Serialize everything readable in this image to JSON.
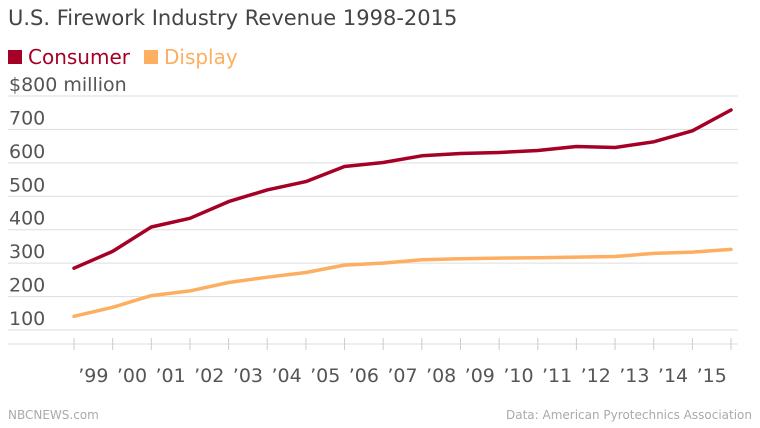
{
  "header": {
    "title": "U.S. Firework Industry Revenue 1998-2015"
  },
  "colors": {
    "consumer": "#a50026",
    "display": "#fdae61",
    "grid": "#dddddd",
    "axis_text": "#555555"
  },
  "footer": {
    "source_left": "NBCNEWS.com",
    "source_right": "Data: American Pyrotechnics Association"
  },
  "chart_data": {
    "type": "line",
    "title": "U.S. Firework Industry Revenue 1998-2015",
    "xlabel": "",
    "ylabel": "",
    "x": [
      "1998",
      "1999",
      "2000",
      "2001",
      "2002",
      "2003",
      "2004",
      "2005",
      "2006",
      "2007",
      "2008",
      "2009",
      "2010",
      "2011",
      "2012",
      "2013",
      "2014",
      "2015"
    ],
    "x_tick_labels": [
      "’99",
      "’00",
      "’01",
      "’02",
      "’03",
      "’04",
      "’05",
      "’06",
      "’07",
      "’08",
      "’09",
      "’10",
      "’11",
      "’12",
      "’13",
      "’14",
      "’15"
    ],
    "y_tick_labels": [
      "$800 million",
      "700",
      "600",
      "500",
      "400",
      "300",
      "200",
      "100"
    ],
    "y_ticks": [
      800,
      700,
      600,
      500,
      400,
      300,
      200,
      100
    ],
    "ylim": [
      100,
      800
    ],
    "grid": true,
    "legend_position": "top-left",
    "series": [
      {
        "name": "Consumer",
        "color": "#a50026",
        "values": [
          285,
          335,
          408,
          434,
          484,
          519,
          544,
          589,
          601,
          621,
          628,
          631,
          637,
          649,
          646,
          663,
          696,
          758
        ]
      },
      {
        "name": "Display",
        "color": "#fdae61",
        "values": [
          141,
          168,
          203,
          217,
          242,
          258,
          272,
          294,
          300,
          310,
          313,
          315,
          316,
          318,
          320,
          329,
          333,
          341
        ]
      }
    ]
  }
}
